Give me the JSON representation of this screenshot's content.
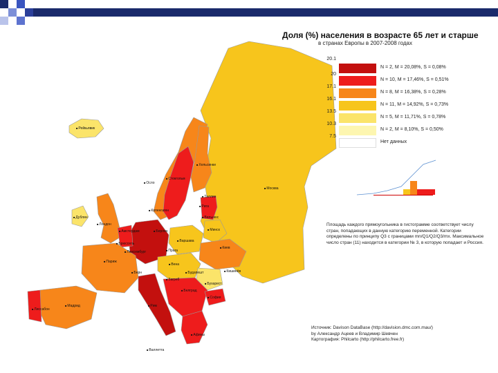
{
  "title": "Доля (%) населения в возрасте 65 лет и старше",
  "subtitle": "в странах Европы в 2007-2008 годах",
  "colors": {
    "c1": "#c3100e",
    "c2": "#ee1c1c",
    "c3": "#f7861a",
    "c4": "#f7c51c",
    "c5": "#fbe46a",
    "c6": "#fdf6b0",
    "nodata": "#ffffff",
    "outside": "#ffffff",
    "border": "#999999"
  },
  "legend": {
    "ticks": [
      "20.1",
      "20",
      "17.1",
      "16.1",
      "13.5",
      "10.3",
      "7.5"
    ],
    "rows": [
      {
        "text": "N = 2,  M = 20,08%, S = 0,08%"
      },
      {
        "text": "N = 10,  M = 17,46%, S = 0,51%"
      },
      {
        "text": "N = 8,  M = 16,38%, S = 0,28%"
      },
      {
        "text": "N = 11,  M = 14,92%, S = 0,73%"
      },
      {
        "text": "N = 5,  M = 11,71%, S = 0,78%"
      },
      {
        "text": "N = 2,  M = 8,10%, S = 0,50%"
      }
    ],
    "nodata_label": "Нет данных"
  },
  "note": "Площадь каждого прямоугольника в гистограмме соответствует числу стран, попадающих в данную категорию переменной. Категории определены по принципу Q3 с границами mn/Q1/Q2/Q3/mx. Максимальное число стран (11) находится в категории № 3, в которую попадает и Россия.",
  "source": [
    "Источник: Davison DataBase (http://davision.dmc.com.mau/)",
    "by Александр Ацеев и Владимир Шевчен",
    "Картография: Philcarto (http://philcarto.free.fr)"
  ],
  "cities": [
    {
      "name": "Москва"
    },
    {
      "name": "Рейкьявик"
    },
    {
      "name": "Дублин"
    },
    {
      "name": "Лондон"
    },
    {
      "name": "Осло"
    },
    {
      "name": "Хельсинки"
    },
    {
      "name": "Стокгольм"
    },
    {
      "name": "Копенгаген"
    },
    {
      "name": "Рига"
    },
    {
      "name": "Вильнюс"
    },
    {
      "name": "Минск"
    },
    {
      "name": "Варшава"
    },
    {
      "name": "Берлин"
    },
    {
      "name": "Амстердам"
    },
    {
      "name": "Брюссель"
    },
    {
      "name": "Париж"
    },
    {
      "name": "Мадрид"
    },
    {
      "name": "Лиссабон"
    },
    {
      "name": "Рим"
    },
    {
      "name": "Прага"
    },
    {
      "name": "Вена"
    },
    {
      "name": "Будапешт"
    },
    {
      "name": "Киев"
    },
    {
      "name": "Кишинёв"
    },
    {
      "name": "Бухарест"
    },
    {
      "name": "София"
    },
    {
      "name": "Белград"
    },
    {
      "name": "Загреб"
    },
    {
      "name": "Афины"
    },
    {
      "name": "Валлетта"
    },
    {
      "name": "Таллин"
    },
    {
      "name": "Люксембург"
    },
    {
      "name": "Берн"
    }
  ]
}
